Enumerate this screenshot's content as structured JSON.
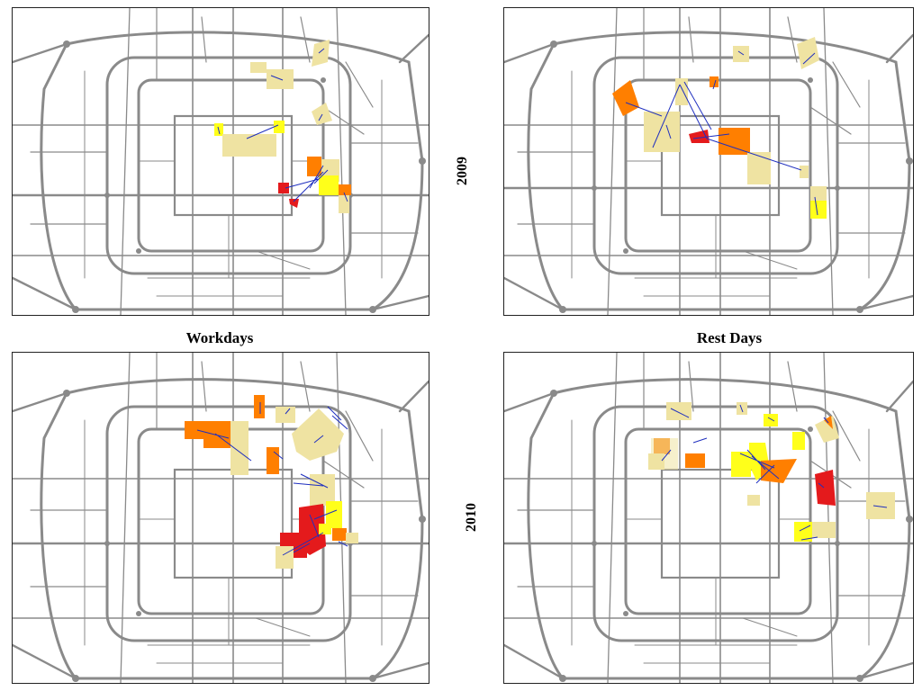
{
  "columns": {
    "workdays": "Workdays",
    "rest_days": "Rest Days"
  },
  "rows": {
    "y2009": "2009",
    "y2010": "2010"
  },
  "colors": {
    "road": "#8a8a8a",
    "node": "#8a8a8a",
    "frame": "#222222",
    "flow_line": "#1f2fbf",
    "hot_low": "#efe3a2",
    "hot_mid": "#ffff1a",
    "hot_high": "#ff7f00",
    "hot_top": "#e41a1c"
  },
  "panels": [
    {
      "id": "workdays-2009",
      "year": "2009",
      "day_type": "Workdays"
    },
    {
      "id": "rest-days-2009",
      "year": "2009",
      "day_type": "Rest Days"
    },
    {
      "id": "workdays-2010",
      "year": "2010",
      "day_type": "Workdays"
    },
    {
      "id": "rest-days-2010",
      "year": "2010",
      "day_type": "Rest Days"
    }
  ]
}
